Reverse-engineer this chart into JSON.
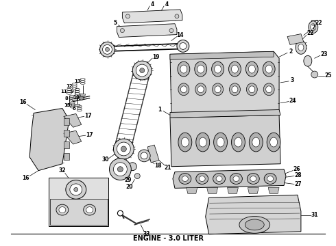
{
  "title": "ENGINE - 3.0 LITER",
  "title_fontsize": 7,
  "title_fontweight": "bold",
  "background_color": "#ffffff",
  "fig_width": 4.9,
  "fig_height": 3.6,
  "dpi": 100
}
